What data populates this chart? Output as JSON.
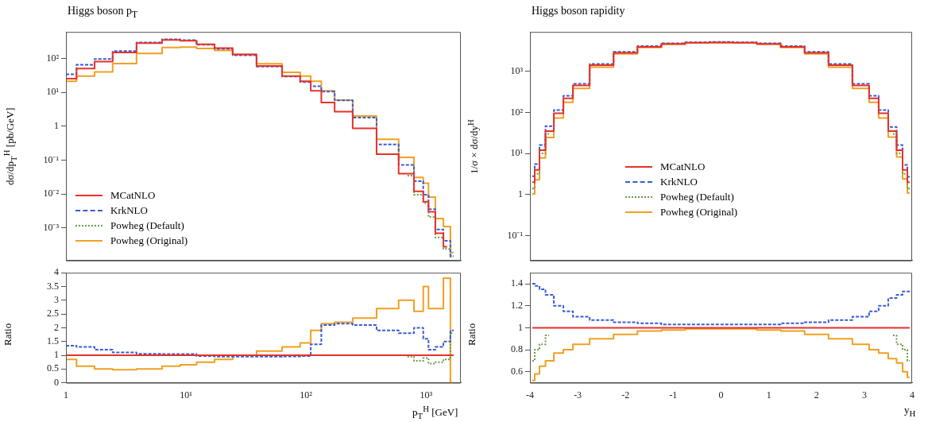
{
  "chart_data": [
    {
      "type": "step",
      "title": "Higgs boson p$_{T}$",
      "ylabel": "dσ/dp$_{T}$$^{H}$ [pb/GeV]",
      "log": "xy",
      "legend": "bottom left",
      "tick_labels": "y",
      "x": [
        1,
        1.5,
        2,
        3,
        5,
        8,
        10,
        15,
        20,
        30,
        50,
        80,
        100,
        120,
        150,
        200,
        300,
        500,
        700,
        900,
        1000,
        1100,
        1300,
        1500,
        1700
      ],
      "xlim": [
        1,
        1950
      ],
      "xticks": [
        1,
        10,
        100,
        1000
      ],
      "ylim": [
        0.00011,
        600
      ],
      "yticks": [
        {
          "value": 0.001,
          "label": "10⁻³"
        },
        {
          "value": 0.01,
          "label": "10⁻²"
        },
        {
          "value": 0.1,
          "label": "10⁻¹"
        },
        1,
        {
          "value": 10,
          "label": "10¹"
        },
        {
          "value": 100,
          "label": "10²"
        }
      ],
      "series": [
        {
          "name": "MCatNLO",
          "color": "#e8312a",
          "line_style": "solid",
          "values": [
            25,
            50,
            80,
            150,
            280,
            350,
            330,
            260,
            200,
            130,
            60,
            30,
            21,
            11,
            5,
            2.7,
            0.87,
            0.15,
            0.04,
            0.012,
            0.006,
            0.003,
            0.0007,
            0.00028,
            null
          ]
        },
        {
          "name": "KrkNLO",
          "color": "#3b5bd6",
          "line_style": "dashed",
          "values": [
            34,
            65,
            96,
            165,
            294,
            365,
            345,
            252,
            190,
            124,
            57,
            29,
            20,
            15,
            10.5,
            5.8,
            1.8,
            0.29,
            0.072,
            0.024,
            0.0096,
            0.0036,
            0.0009,
            0.00042,
            0.00015
          ]
        },
        {
          "name": "Powheg (Default)",
          "color": "#6a9a4a",
          "line_style": "dotted",
          "values": [
            null,
            null,
            null,
            null,
            null,
            null,
            null,
            null,
            null,
            null,
            null,
            null,
            null,
            null,
            null,
            null,
            null,
            null,
            0.035,
            0.0096,
            0.0054,
            0.0021,
            0.00053,
            0.00024,
            0.00014
          ]
        },
        {
          "name": "Powheg (Original)",
          "color": "#f0a020",
          "line_style": "solid",
          "values": [
            21,
            30,
            40,
            70,
            140,
            210,
            215,
            195,
            170,
            130,
            69,
            39,
            30,
            21,
            11,
            5.9,
            2,
            0.41,
            0.12,
            0.031,
            0.021,
            0.0081,
            0.0019,
            0.0011,
            0.00019
          ]
        }
      ]
    },
    {
      "type": "step",
      "xlabel": "p$_{T}$$^{H}$ [GeV]",
      "ylabel": "Ratio",
      "log": "x",
      "x": [
        1,
        1.5,
        2,
        3,
        5,
        8,
        10,
        15,
        20,
        30,
        50,
        80,
        100,
        120,
        150,
        200,
        300,
        500,
        700,
        900,
        1000,
        1100,
        1300,
        1500,
        1700
      ],
      "xlim": [
        1,
        1950
      ],
      "xticks": [
        1,
        {
          "value": 10,
          "label": "10¹"
        },
        {
          "value": 100,
          "label": "10²"
        },
        {
          "value": 1000,
          "label": "10³"
        }
      ],
      "ylim": [
        0,
        4
      ],
      "yticks": [
        0,
        0.5,
        1,
        1.5,
        2,
        2.5,
        3,
        3.5,
        4
      ],
      "series": [
        {
          "color": "#e8312a",
          "line_style": "solid",
          "values": [
            1,
            1,
            1,
            1,
            1,
            1,
            1,
            1,
            1,
            1,
            1,
            1,
            1,
            1,
            1,
            1,
            1,
            1,
            1,
            1,
            1,
            1,
            1,
            1,
            1
          ]
        },
        {
          "color": "#3b5bd6",
          "line_style": "dashed",
          "values": [
            1.35,
            1.3,
            1.2,
            1.1,
            1.05,
            1.04,
            1.04,
            0.97,
            0.95,
            0.95,
            0.95,
            0.96,
            0.97,
            1.4,
            2.1,
            2.15,
            2.1,
            1.9,
            1.8,
            2,
            1.6,
            1.2,
            1.3,
            1.5,
            1.9
          ]
        },
        {
          "color": "#6a9a4a",
          "line_style": "dotted",
          "values": [
            null,
            null,
            null,
            null,
            null,
            null,
            null,
            null,
            null,
            null,
            null,
            null,
            null,
            null,
            null,
            null,
            null,
            null,
            0.95,
            0.8,
            0.9,
            0.7,
            0.75,
            0.85,
            1.8
          ]
        },
        {
          "color": "#f0a020",
          "line_style": "solid",
          "values": [
            0.85,
            0.6,
            0.5,
            0.47,
            0.5,
            0.6,
            0.65,
            0.75,
            0.85,
            1,
            1.15,
            1.3,
            1.45,
            1.9,
            2.15,
            2.2,
            2.35,
            2.7,
            3,
            2.6,
            3.5,
            2.7,
            2.7,
            3.8,
            0
          ]
        }
      ]
    },
    {
      "type": "step",
      "title": "Higgs boson rapidity",
      "ylabel": "1/σ × dσ/dy$^{H}$",
      "log": "y",
      "legend": "left",
      "tick_labels": "y",
      "x": [
        -3.95,
        -3.85,
        -3.75,
        -3.6,
        -3.4,
        -3.2,
        -3,
        -2.5,
        -2,
        -1.5,
        -1,
        -0.5,
        0,
        0.5,
        1,
        1.5,
        2,
        2.5,
        3,
        3.2,
        3.4,
        3.6,
        3.75,
        3.85,
        3.95
      ],
      "xlim": [
        -4,
        4
      ],
      "xticks": [
        -4,
        -3,
        -2,
        -1,
        0,
        1,
        2,
        3,
        4
      ],
      "ylim": [
        0.025,
        9000
      ],
      "yticks": [
        {
          "value": 0.1,
          "label": "10⁻¹"
        },
        1,
        {
          "value": 10,
          "label": "10¹"
        },
        {
          "value": 100,
          "label": "10²"
        },
        {
          "value": 1000,
          "label": "10³"
        }
      ],
      "series": [
        {
          "name": "MCatNLO",
          "color": "#e8312a",
          "line_style": "solid",
          "values": [
            2,
            4,
            12,
            35,
            95,
            220,
            450,
            1400,
            2800,
            3900,
            4600,
            4900,
            5000,
            4900,
            4600,
            3900,
            2800,
            1400,
            450,
            220,
            95,
            35,
            12,
            4,
            2
          ]
        },
        {
          "name": "KrkNLO",
          "color": "#3b5bd6",
          "line_style": "dashed",
          "values": [
            2.8,
            5.5,
            16,
            46,
            114,
            253,
            495,
            1500,
            2940,
            4060,
            4740,
            5050,
            5150,
            5050,
            4740,
            4060,
            2940,
            1500,
            495,
            253,
            114,
            44,
            16,
            5.3,
            2.7
          ]
        },
        {
          "name": "Powheg (Default)",
          "color": "#6a9a4a",
          "line_style": "dotted",
          "values": [
            1.4,
            3.2,
            10,
            30,
            null,
            null,
            null,
            null,
            null,
            null,
            null,
            null,
            null,
            null,
            null,
            null,
            null,
            null,
            null,
            null,
            null,
            30,
            10,
            3.2,
            1.4
          ]
        },
        {
          "name": "Powheg (Original)",
          "color": "#f0a020",
          "line_style": "solid",
          "values": [
            1.04,
            2.3,
            7.8,
            24.5,
            73,
            176,
            383,
            1260,
            2630,
            3780,
            4510,
            4850,
            4950,
            4850,
            4510,
            3780,
            2630,
            1260,
            383,
            176,
            73,
            25,
            8.2,
            2.4,
            1.1
          ]
        }
      ]
    },
    {
      "type": "step",
      "xlabel": "y$_{H}$",
      "ylabel": "Ratio",
      "x": [
        -3.95,
        -3.85,
        -3.75,
        -3.6,
        -3.4,
        -3.2,
        -3,
        -2.5,
        -2,
        -1.5,
        -1,
        -0.5,
        0,
        0.5,
        1,
        1.5,
        2,
        2.5,
        3,
        3.2,
        3.4,
        3.6,
        3.75,
        3.85,
        3.95
      ],
      "xlim": [
        -4,
        4
      ],
      "xticks": [
        -4,
        -3,
        -2,
        -1,
        0,
        1,
        2,
        3,
        4
      ],
      "ylim": [
        0.5,
        1.5
      ],
      "yticks": [
        0.6,
        0.8,
        1,
        1.2,
        1.4
      ],
      "series": [
        {
          "color": "#e8312a",
          "line_style": "solid",
          "values": [
            1,
            1,
            1,
            1,
            1,
            1,
            1,
            1,
            1,
            1,
            1,
            1,
            1,
            1,
            1,
            1,
            1,
            1,
            1,
            1,
            1,
            1,
            1,
            1,
            1
          ]
        },
        {
          "color": "#3b5bd6",
          "line_style": "dashed",
          "values": [
            1.4,
            1.38,
            1.35,
            1.3,
            1.2,
            1.15,
            1.1,
            1.07,
            1.05,
            1.04,
            1.03,
            1.03,
            1.03,
            1.03,
            1.03,
            1.04,
            1.05,
            1.07,
            1.1,
            1.15,
            1.2,
            1.27,
            1.3,
            1.33,
            1.33
          ]
        },
        {
          "color": "#6a9a4a",
          "line_style": "dotted",
          "values": [
            0.7,
            0.8,
            0.85,
            0.93,
            null,
            null,
            null,
            null,
            null,
            null,
            null,
            null,
            null,
            null,
            null,
            null,
            null,
            null,
            null,
            null,
            null,
            0.93,
            0.85,
            0.8,
            0.7
          ]
        },
        {
          "color": "#f0a020",
          "line_style": "solid",
          "values": [
            0.52,
            0.58,
            0.65,
            0.7,
            0.77,
            0.8,
            0.85,
            0.9,
            0.94,
            0.97,
            0.98,
            0.99,
            0.99,
            0.99,
            0.98,
            0.97,
            0.94,
            0.9,
            0.85,
            0.8,
            0.77,
            0.72,
            0.68,
            0.6,
            0.55
          ]
        }
      ]
    }
  ]
}
